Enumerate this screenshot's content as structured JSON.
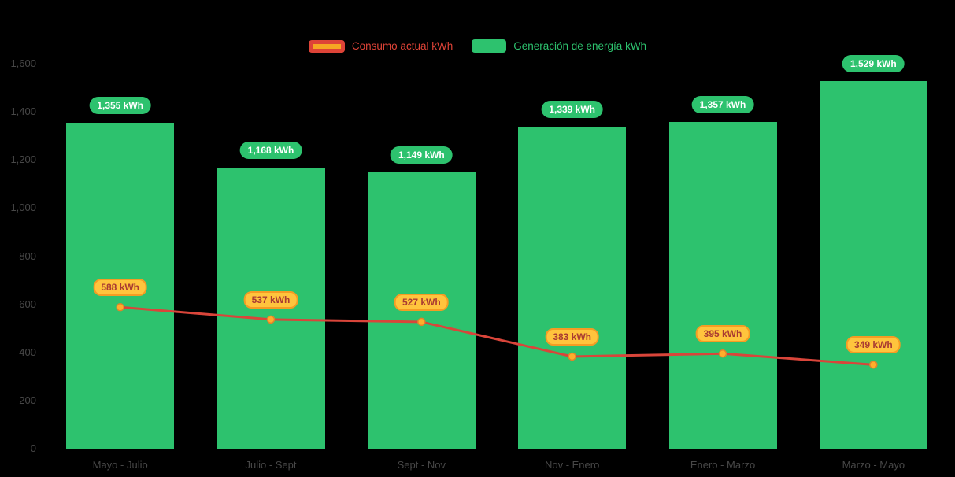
{
  "chart_data": {
    "type": "combo (bar + line)",
    "categories": [
      "Mayo - Julio",
      "Julio - Sept",
      "Sept - Nov",
      "Nov - Enero",
      "Enero - Marzo",
      "Marzo - Mayo"
    ],
    "series": [
      {
        "name": "Consumo actual kWh",
        "type": "line",
        "color": "#d9453a",
        "marker_color": "#ffae2b",
        "marker_stroke": "#e2822a",
        "values": [
          588,
          537,
          527,
          383,
          395,
          349
        ],
        "labels": [
          "588 kWh",
          "537 kWh",
          "527 kWh",
          "383 kWh",
          "395 kWh",
          "349 kWh"
        ]
      },
      {
        "name": "Generación de energía kWh",
        "type": "bar",
        "color": "#2dc26e",
        "values": [
          1355,
          1168,
          1149,
          1339,
          1357,
          1529
        ],
        "labels": [
          "1,355 kWh",
          "1,168 kWh",
          "1,149 kWh",
          "1,339 kWh",
          "1,357 kWh",
          "1,529 kWh"
        ]
      }
    ],
    "ylim": [
      0,
      1600
    ],
    "yticks": [
      {
        "value": 0,
        "label": "0"
      },
      {
        "value": 200,
        "label": "200"
      },
      {
        "value": 400,
        "label": "400"
      },
      {
        "value": 600,
        "label": "600"
      },
      {
        "value": 800,
        "label": "800"
      },
      {
        "value": 1000,
        "label": "1,000"
      },
      {
        "value": 1200,
        "label": "1,200"
      },
      {
        "value": 1400,
        "label": "1,400"
      },
      {
        "value": 1600,
        "label": "1,600"
      }
    ],
    "grid": false,
    "legend_position": "top-center",
    "background": "#000000",
    "axis_text_color": "#474747"
  }
}
